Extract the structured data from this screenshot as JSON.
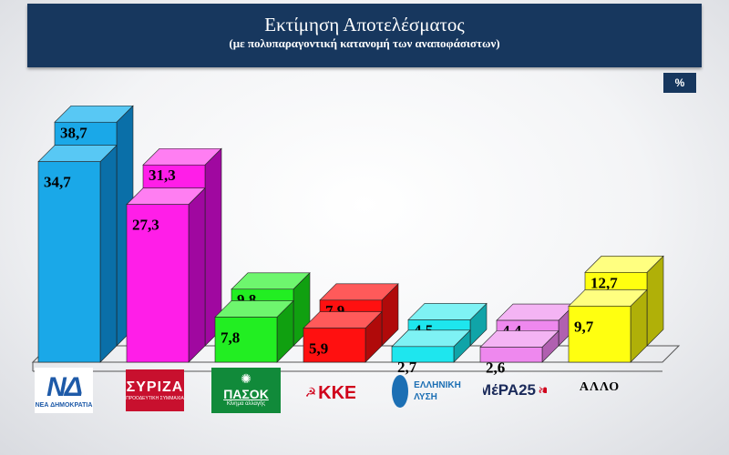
{
  "header": {
    "title": "Εκτίμηση Αποτελέσματος",
    "subtitle": "(με πολυπαραγοντική  κατανομή των αναποφάσιστων)"
  },
  "unit_label": "%",
  "chart_data": {
    "type": "bar",
    "title": "Εκτίμηση Αποτελέσματος",
    "subtitle": "(με πολυπαραγοντική  κατανομή των αναποφάσιστων)",
    "ylabel": "%",
    "ylim": [
      0,
      40
    ],
    "categories": [
      "ΝΕΑ ΔΗΜΟΚΡΑΤΙΑ",
      "ΣΥΡΙΖΑ",
      "ΠΑΣΟΚ",
      "ΚΚΕ",
      "ΕΛΛΗΝΙΚΗ ΛΥΣΗ",
      "ΜέΡΑ25",
      "ΑΛΛΟ"
    ],
    "series": [
      {
        "values": [
          34.7,
          27.3,
          7.8,
          5.9,
          2.7,
          2.6,
          9.7
        ],
        "labels": [
          "34,7",
          "27,3",
          "7,8",
          "5,9",
          "2,7",
          "2,6",
          "9,7"
        ]
      },
      {
        "values": [
          38.7,
          31.3,
          9.8,
          7.9,
          4.5,
          4.4,
          12.7
        ],
        "labels": [
          "38,7",
          "31,3",
          "9,8",
          "7,9",
          "4,5",
          "4,4",
          "12,7"
        ]
      }
    ],
    "colors": {
      "front": [
        "#1aa8e8",
        "#ff1ee8",
        "#22ee22",
        "#ff1010",
        "#1ee6ee",
        "#ee88ee",
        "#ffff10"
      ],
      "top": [
        "#58c8f4",
        "#ff7ef2",
        "#6ef66e",
        "#ff5a5a",
        "#7ef2f4",
        "#f4b4f4",
        "#ffff80"
      ],
      "side": [
        "#0a6fa8",
        "#a008a0",
        "#10a010",
        "#b00a0a",
        "#10a4a8",
        "#b060b0",
        "#b0b008"
      ]
    }
  },
  "logos": {
    "nd": {
      "mark": "ΝΔ",
      "text": "ΝΕΑ ΔΗΜΟΚΡΑΤΙΑ"
    },
    "syriza": {
      "mark": "ΣΥΡΙΖΑ",
      "text": "ΠΡΟΟΔΕΥΤΙΚΗ ΣΥΜΜΑΧΙΑ"
    },
    "pasok": {
      "mark": "ΠΑΣΟΚ",
      "text": "Κίνημα αλλαγής"
    },
    "kke": {
      "mark": "ΚΚΕ"
    },
    "elliniki_lysi": {
      "line1": "ΕΛΛΗΝΙΚΗ",
      "line2": "ΛΥΣΗ"
    },
    "mera25": {
      "mark": "ΜέΡΑ25"
    },
    "allo": {
      "text": "ΑΛΛΟ"
    }
  }
}
